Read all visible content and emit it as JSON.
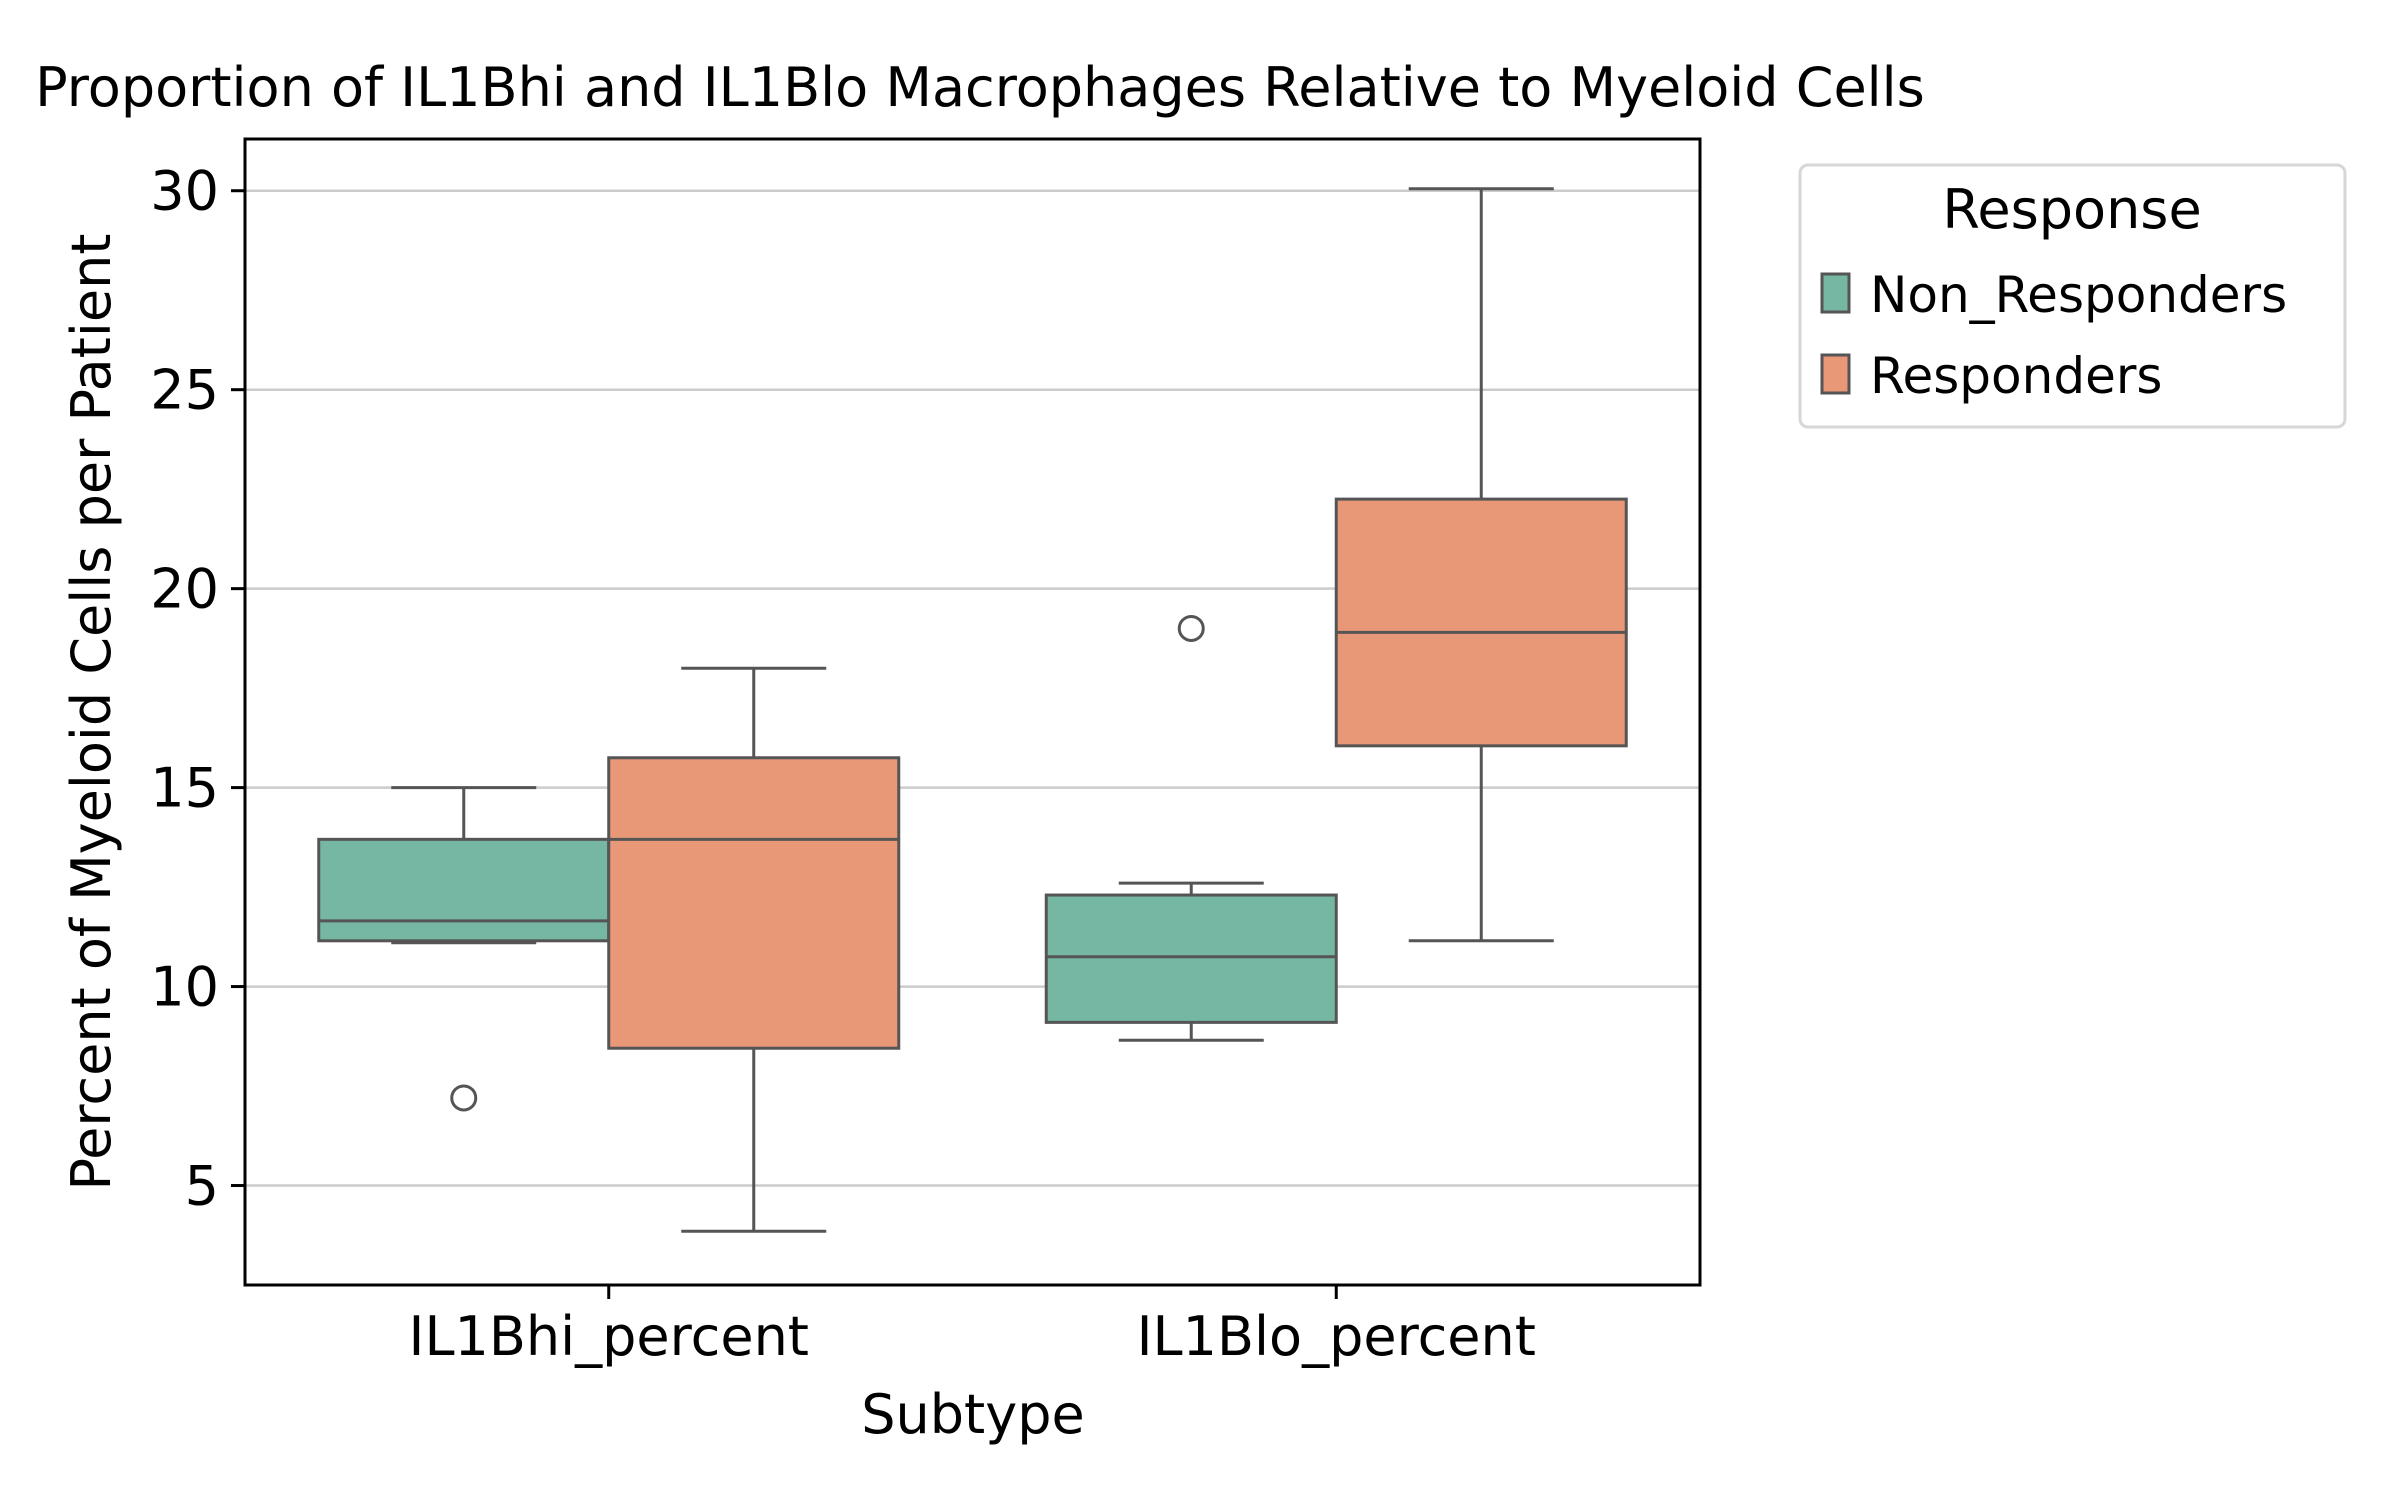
{
  "chart_data": {
    "type": "box",
    "title": "Proportion of IL1Bhi and IL1Blo Macrophages Relative to Myeloid Cells",
    "xlabel": "Subtype",
    "ylabel": "Percent of Myeloid Cells per Patient",
    "categories": [
      "IL1Bhi_percent",
      "IL1Blo_percent"
    ],
    "ylim": [
      2.5,
      31.3
    ],
    "yticks": [
      5,
      10,
      15,
      20,
      25,
      30
    ],
    "grid": "horizontal",
    "legend": {
      "title": "Response",
      "placement": "outside-top-right"
    },
    "series": [
      {
        "name": "Non_Responders",
        "color": "#76b7a3",
        "boxes": [
          {
            "category": "IL1Bhi_percent",
            "whisker_low": 11.1,
            "q1": 11.15,
            "median": 11.65,
            "q3": 13.7,
            "whisker_high": 15.0,
            "outliers": [
              7.2
            ]
          },
          {
            "category": "IL1Blo_percent",
            "whisker_low": 8.65,
            "q1": 9.1,
            "median": 10.75,
            "q3": 12.3,
            "whisker_high": 12.6,
            "outliers": [
              19.0
            ]
          }
        ]
      },
      {
        "name": "Responders",
        "color": "#e99877",
        "boxes": [
          {
            "category": "IL1Bhi_percent",
            "whisker_low": 3.85,
            "q1": 8.45,
            "median": 13.7,
            "q3": 15.75,
            "whisker_high": 18.0,
            "outliers": []
          },
          {
            "category": "IL1Blo_percent",
            "whisker_low": 11.15,
            "q1": 16.05,
            "median": 18.9,
            "q3": 22.25,
            "whisker_high": 30.05,
            "outliers": []
          }
        ]
      }
    ]
  }
}
